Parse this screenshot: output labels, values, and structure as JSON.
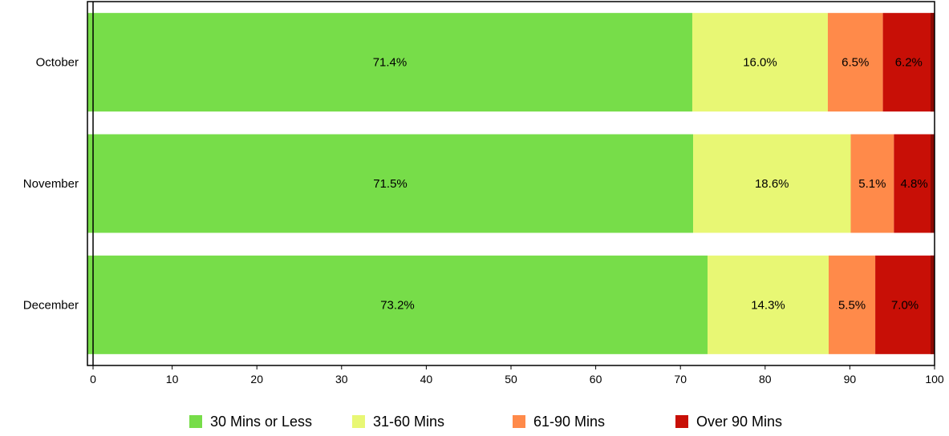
{
  "chart_data": {
    "type": "bar",
    "orientation": "horizontal",
    "stacked": true,
    "categories": [
      "October",
      "November",
      "December"
    ],
    "series": [
      {
        "name": "30 Mins or Less",
        "color": "#77dd49",
        "values": [
          71.4,
          71.5,
          73.2
        ],
        "labels": [
          "71.4%",
          "71.5%",
          "73.2%"
        ]
      },
      {
        "name": "31-60 Mins",
        "color": "#e8f774",
        "values": [
          16.0,
          18.6,
          14.3
        ],
        "labels": [
          "16.0%",
          "18.6%",
          "14.3%"
        ]
      },
      {
        "name": "61-90 Mins",
        "color": "#ff8a4a",
        "values": [
          6.5,
          5.1,
          5.5
        ],
        "labels": [
          "6.5%",
          "5.1%",
          "5.5%"
        ]
      },
      {
        "name": "Over 90 Mins",
        "color": "#c80f06",
        "values": [
          6.2,
          4.8,
          7.0
        ],
        "labels": [
          "6.2%",
          "4.8%",
          "7.0%"
        ]
      }
    ],
    "xlim": [
      0,
      100
    ],
    "xticks": [
      "0",
      "10",
      "20",
      "30",
      "40",
      "50",
      "60",
      "70",
      "80",
      "90",
      "100"
    ],
    "grid": false,
    "legend_position": "bottom"
  }
}
